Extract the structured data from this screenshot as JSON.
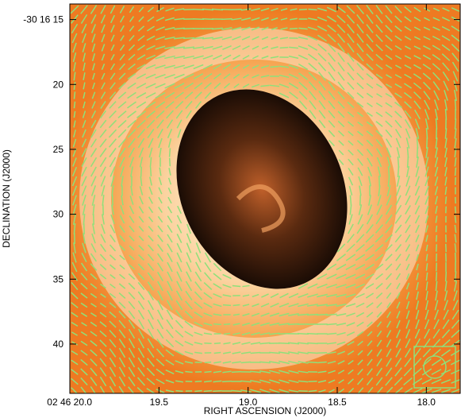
{
  "chart_data": {
    "type": "image",
    "x_label": "RIGHT ASCENSION (J2000)",
    "y_label": "DECLINATION (J2000)",
    "xlim": [
      20.0,
      17.81
    ],
    "ylim": [
      43.8,
      13.8
    ],
    "xticks": [
      {
        "value": 20.0,
        "label": "02 46 20.0"
      },
      19.5,
      {
        "value": 19.0,
        "label": "19.0"
      },
      18.5,
      {
        "value": 18.0,
        "label": "18.0"
      }
    ],
    "yticks": [
      {
        "value": 15,
        "label": "-30 16 15"
      },
      20,
      25,
      30,
      35,
      40
    ],
    "vector_color": "#8fe07a"
  }
}
